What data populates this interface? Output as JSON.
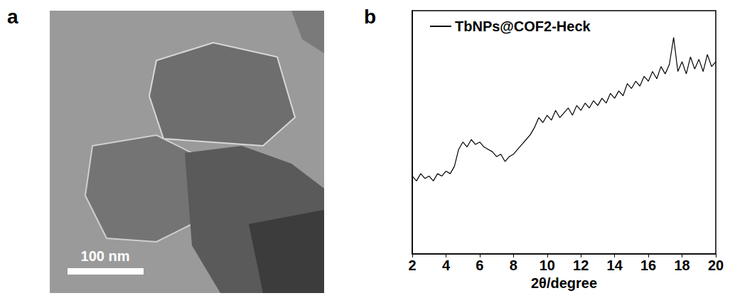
{
  "panel_labels": [
    "a",
    "b"
  ],
  "micrograph": {
    "scale_bar_label": "100 nm"
  },
  "chart_data": {
    "type": "line",
    "xlabel": "2θ/degree",
    "xlim": [
      2,
      20
    ],
    "xticks": [
      2,
      4,
      6,
      8,
      10,
      12,
      14,
      16,
      18,
      20
    ],
    "ylim": [
      0,
      100
    ],
    "tick_labels": "x",
    "grid": false,
    "legend": "upper left",
    "x": [
      2,
      2.25,
      2.5,
      2.75,
      3,
      3.25,
      3.5,
      3.75,
      4,
      4.25,
      4.5,
      4.75,
      5,
      5.25,
      5.5,
      5.75,
      6,
      6.25,
      6.5,
      6.75,
      7,
      7.25,
      7.5,
      7.75,
      8,
      8.25,
      8.5,
      8.75,
      9,
      9.25,
      9.5,
      9.75,
      10,
      10.25,
      10.5,
      10.75,
      11,
      11.25,
      11.5,
      11.75,
      12,
      12.25,
      12.5,
      12.75,
      13,
      13.25,
      13.5,
      13.75,
      14,
      14.25,
      14.5,
      14.75,
      15,
      15.25,
      15.5,
      15.75,
      16,
      16.25,
      16.5,
      16.75,
      17,
      17.25,
      17.5,
      17.75,
      18,
      18.25,
      18.5,
      18.75,
      19,
      19.25,
      19.5,
      19.75,
      20
    ],
    "series": [
      {
        "name": "TbNPs@COF2-Heck",
        "color": "#000000",
        "values": [
          32,
          30,
          33,
          31,
          32,
          30,
          33,
          32,
          34,
          33,
          36,
          43,
          46,
          44,
          47,
          45,
          46,
          44,
          43,
          42,
          40,
          41,
          38,
          40,
          41,
          43,
          45,
          47,
          49,
          52,
          56,
          54,
          57,
          55,
          59,
          56,
          58,
          60,
          57,
          61,
          59,
          62,
          60,
          63,
          61,
          64,
          62,
          66,
          64,
          67,
          65,
          70,
          68,
          71,
          69,
          73,
          71,
          75,
          72,
          77,
          74,
          78,
          89,
          75,
          79,
          74,
          81,
          76,
          80,
          75,
          82,
          77,
          79
        ]
      }
    ]
  }
}
